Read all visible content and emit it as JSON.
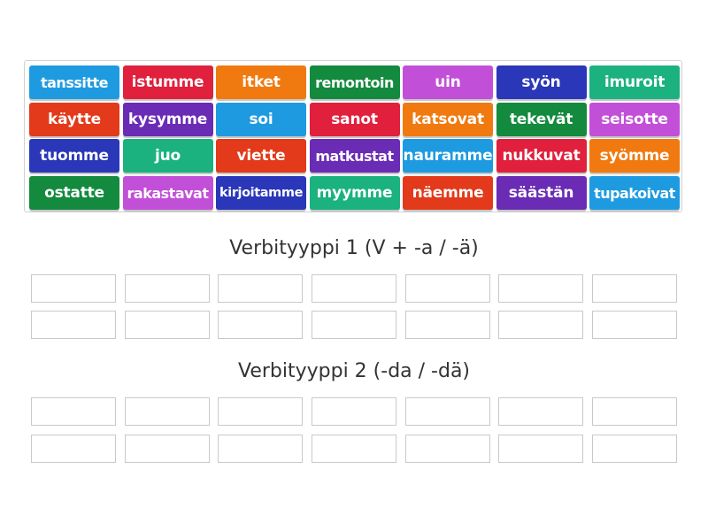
{
  "tiles": [
    {
      "label": "tanssitte",
      "color": "#1e9be0"
    },
    {
      "label": "istumme",
      "color": "#e0203c"
    },
    {
      "label": "itket",
      "color": "#f07a10"
    },
    {
      "label": "remontoin",
      "color": "#138a3e"
    },
    {
      "label": "uin",
      "color": "#c24fd8"
    },
    {
      "label": "syön",
      "color": "#2a37b8"
    },
    {
      "label": "imuroit",
      "color": "#1bb27f"
    },
    {
      "label": "käytte",
      "color": "#e23a1a"
    },
    {
      "label": "kysymme",
      "color": "#6a2bb5"
    },
    {
      "label": "soi",
      "color": "#1e9be0"
    },
    {
      "label": "sanot",
      "color": "#e0203c"
    },
    {
      "label": "katsovat",
      "color": "#f07a10"
    },
    {
      "label": "tekevät",
      "color": "#138a3e"
    },
    {
      "label": "seisotte",
      "color": "#c24fd8"
    },
    {
      "label": "tuomme",
      "color": "#2a37b8"
    },
    {
      "label": "juo",
      "color": "#1bb27f"
    },
    {
      "label": "viette",
      "color": "#e23a1a"
    },
    {
      "label": "matkustat",
      "color": "#6a2bb5"
    },
    {
      "label": "nauramme",
      "color": "#1e9be0"
    },
    {
      "label": "nukkuvat",
      "color": "#e0203c"
    },
    {
      "label": "syömme",
      "color": "#f07a10"
    },
    {
      "label": "ostatte",
      "color": "#138a3e"
    },
    {
      "label": "rakastavat",
      "color": "#c24fd8"
    },
    {
      "label": "kirjoitamme",
      "color": "#2a37b8"
    },
    {
      "label": "myymme",
      "color": "#1bb27f"
    },
    {
      "label": "näemme",
      "color": "#e23a1a"
    },
    {
      "label": "säästän",
      "color": "#6a2bb5"
    },
    {
      "label": "tupakoivat",
      "color": "#1e9be0"
    }
  ],
  "groups": [
    {
      "title": "Verbityyppi 1 (V + -a / -ä)"
    },
    {
      "title": "Verbityyppi 2 (-da / -dä)"
    }
  ]
}
